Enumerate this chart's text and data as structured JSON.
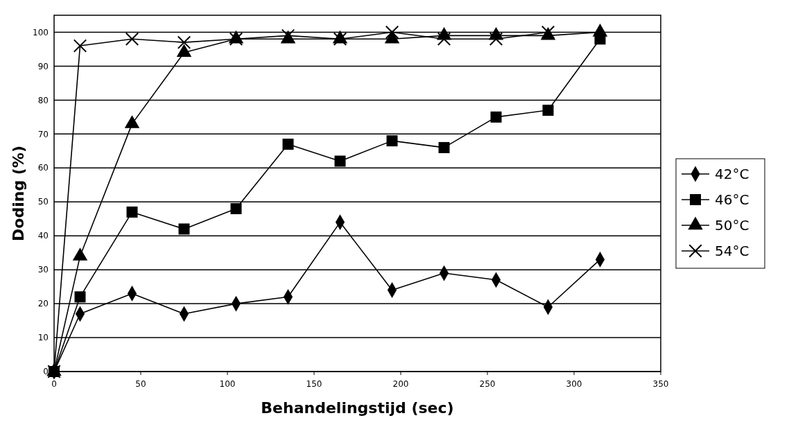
{
  "chart_data": {
    "type": "line",
    "xlabel": "Behandelingstijd (sec)",
    "ylabel": "Doding (%)",
    "x": [
      0,
      15,
      45,
      75,
      105,
      135,
      165,
      195,
      225,
      255,
      285,
      315
    ],
    "series": [
      {
        "name": "42°C",
        "color": "#000000",
        "marker": "diamond",
        "values": [
          0,
          17,
          23,
          17,
          20,
          22,
          44,
          24,
          29,
          27,
          19,
          33
        ]
      },
      {
        "name": "46°C",
        "color": "#000000",
        "marker": "square",
        "values": [
          0,
          22,
          47,
          42,
          48,
          67,
          62,
          68,
          66,
          75,
          77,
          98
        ]
      },
      {
        "name": "50°C",
        "color": "#000000",
        "marker": "triangle",
        "values": [
          0,
          34,
          73,
          94,
          98,
          98,
          98,
          98,
          99,
          99,
          99,
          100
        ]
      },
      {
        "name": "54°C",
        "color": "#000000",
        "marker": "cross",
        "values": [
          0,
          96,
          98,
          97,
          98,
          99,
          98,
          100,
          98,
          98,
          100,
          null
        ]
      }
    ],
    "xlim": [
      0,
      350
    ],
    "xticks": [
      0,
      50,
      100,
      150,
      200,
      250,
      300,
      350
    ],
    "ylim": [
      0,
      105
    ],
    "yticks": [
      0,
      10,
      20,
      30,
      40,
      50,
      60,
      70,
      80,
      90,
      100
    ],
    "grid": "y",
    "legend": "right",
    "line_style": "solid"
  }
}
